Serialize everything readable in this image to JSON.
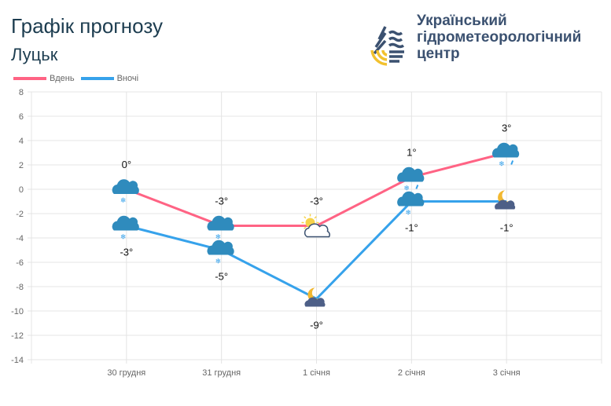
{
  "header": {
    "title": "Графік прогнозу",
    "city": "Луцьк"
  },
  "org": {
    "line1": "Український",
    "line2": "гідрометеорологічний",
    "line3": "центр"
  },
  "chart_data": {
    "type": "line",
    "categories": [
      "30 грудня",
      "31 грудня",
      "1 січня",
      "2 січня",
      "3 січня"
    ],
    "series": [
      {
        "name": "Вдень",
        "color": "#ff6384",
        "values": [
          0,
          -3,
          -3,
          1,
          3
        ],
        "labels": [
          "0°",
          "-3°",
          "-3°",
          "1°",
          "3°"
        ],
        "icons": [
          "cloud-snow",
          "cloud-snow",
          "sun-cloud",
          "cloud-rain-snow",
          "cloud-rain-snow"
        ]
      },
      {
        "name": "Вночі",
        "color": "#36a2eb",
        "values": [
          -3,
          -5,
          -9,
          -1,
          -1
        ],
        "labels": [
          "-3°",
          "-5°",
          "-9°",
          "-1°",
          "-1°"
        ],
        "icons": [
          "cloud-snow",
          "cloud-snow",
          "moon-cloud",
          "cloud-snow",
          "moon-cloud"
        ]
      }
    ],
    "ylim": [
      -14,
      8
    ],
    "yticks": [
      8,
      6,
      4,
      2,
      0,
      -2,
      -4,
      -6,
      -8,
      -10,
      -12,
      -14
    ],
    "grid": true,
    "legend": "top-left"
  }
}
